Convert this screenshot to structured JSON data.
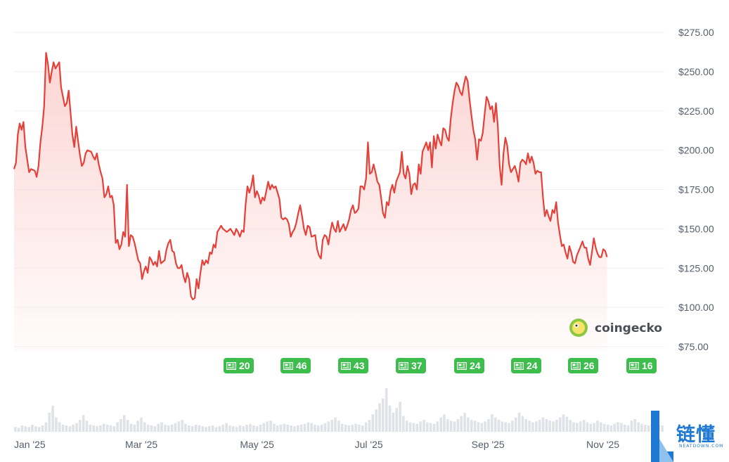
{
  "chart_data": {
    "type": "area",
    "title": "",
    "xlabel": "",
    "ylabel": "",
    "y_axis_position": "right",
    "grid": "horizontal",
    "ylim": [
      67,
      280
    ],
    "ytick_labels": [
      "$275.00",
      "$250.00",
      "$225.00",
      "$200.00",
      "$175.00",
      "$150.00",
      "$125.00",
      "$100.00",
      "$75.00"
    ],
    "ytick_values": [
      275,
      250,
      225,
      200,
      175,
      150,
      125,
      100,
      75
    ],
    "xtick_labels": [
      "Jan '25",
      "Mar '25",
      "May '25",
      "Jul '25",
      "Sep '25",
      "Nov '25"
    ],
    "xtick_days": [
      0,
      59,
      120,
      181,
      243,
      304
    ],
    "x_range_days": [
      0,
      345
    ],
    "line_color": "#e5413b",
    "fill_color": "#fbd3d1",
    "price_points": [
      [
        0,
        188
      ],
      [
        1,
        192
      ],
      [
        2,
        210
      ],
      [
        3,
        217
      ],
      [
        4,
        213
      ],
      [
        5,
        218
      ],
      [
        6,
        202
      ],
      [
        8,
        186
      ],
      [
        9,
        188
      ],
      [
        11,
        187
      ],
      [
        12,
        183
      ],
      [
        13,
        190
      ],
      [
        14,
        205
      ],
      [
        15,
        215
      ],
      [
        16,
        228
      ],
      [
        17,
        262
      ],
      [
        18,
        255
      ],
      [
        19,
        243
      ],
      [
        20,
        250
      ],
      [
        21,
        256
      ],
      [
        22,
        252
      ],
      [
        23,
        254
      ],
      [
        24,
        256
      ],
      [
        25,
        240
      ],
      [
        27,
        228
      ],
      [
        28,
        230
      ],
      [
        29,
        238
      ],
      [
        31,
        210
      ],
      [
        32,
        202
      ],
      [
        33,
        215
      ],
      [
        35,
        197
      ],
      [
        36,
        190
      ],
      [
        37,
        192
      ],
      [
        38,
        198
      ],
      [
        39,
        200
      ],
      [
        41,
        199
      ],
      [
        42,
        196
      ],
      [
        43,
        194
      ],
      [
        44,
        198
      ],
      [
        45,
        191
      ],
      [
        46,
        186
      ],
      [
        47,
        182
      ],
      [
        48,
        170
      ],
      [
        49,
        172
      ],
      [
        50,
        177
      ],
      [
        51,
        170
      ],
      [
        52,
        171
      ],
      [
        53,
        165
      ],
      [
        54,
        141
      ],
      [
        55,
        143
      ],
      [
        56,
        137
      ],
      [
        57,
        140
      ],
      [
        58,
        148
      ],
      [
        59,
        145
      ],
      [
        60,
        178
      ],
      [
        61,
        139
      ],
      [
        62,
        146
      ],
      [
        63,
        145
      ],
      [
        64,
        141
      ],
      [
        66,
        130
      ],
      [
        67,
        128
      ],
      [
        68,
        118
      ],
      [
        69,
        123
      ],
      [
        70,
        126
      ],
      [
        71,
        122
      ],
      [
        72,
        132
      ],
      [
        73,
        130
      ],
      [
        74,
        127
      ],
      [
        75,
        129
      ],
      [
        76,
        126
      ],
      [
        77,
        136
      ],
      [
        78,
        128
      ],
      [
        80,
        130
      ],
      [
        81,
        137
      ],
      [
        82,
        141
      ],
      [
        83,
        143
      ],
      [
        84,
        136
      ],
      [
        85,
        135
      ],
      [
        86,
        128
      ],
      [
        87,
        125
      ],
      [
        88,
        125
      ],
      [
        89,
        127
      ],
      [
        90,
        120
      ],
      [
        91,
        116
      ],
      [
        92,
        122
      ],
      [
        93,
        118
      ],
      [
        94,
        107
      ],
      [
        95,
        105
      ],
      [
        96,
        106
      ],
      [
        97,
        118
      ],
      [
        98,
        112
      ],
      [
        99,
        122
      ],
      [
        100,
        130
      ],
      [
        101,
        127
      ],
      [
        102,
        130
      ],
      [
        103,
        128
      ],
      [
        104,
        135
      ],
      [
        105,
        134
      ],
      [
        106,
        140
      ],
      [
        107,
        138
      ],
      [
        108,
        148
      ],
      [
        109,
        150
      ],
      [
        110,
        152
      ],
      [
        111,
        150
      ],
      [
        113,
        148
      ],
      [
        114,
        149
      ],
      [
        115,
        150
      ],
      [
        116,
        148
      ],
      [
        117,
        146
      ],
      [
        118,
        150
      ],
      [
        119,
        148
      ],
      [
        120,
        145
      ],
      [
        121,
        149
      ],
      [
        122,
        148
      ],
      [
        123,
        165
      ],
      [
        124,
        177
      ],
      [
        125,
        173
      ],
      [
        126,
        177
      ],
      [
        127,
        184
      ],
      [
        128,
        170
      ],
      [
        129,
        174
      ],
      [
        130,
        171
      ],
      [
        131,
        166
      ],
      [
        132,
        170
      ],
      [
        133,
        168
      ],
      [
        135,
        180
      ],
      [
        136,
        175
      ],
      [
        137,
        178
      ],
      [
        138,
        176
      ],
      [
        139,
        177
      ],
      [
        140,
        173
      ],
      [
        141,
        169
      ],
      [
        142,
        157
      ],
      [
        143,
        156
      ],
      [
        144,
        157
      ],
      [
        145,
        156
      ],
      [
        146,
        153
      ],
      [
        147,
        145
      ],
      [
        148,
        148
      ],
      [
        149,
        150
      ],
      [
        150,
        154
      ],
      [
        151,
        160
      ],
      [
        152,
        165
      ],
      [
        153,
        158
      ],
      [
        154,
        150
      ],
      [
        155,
        146
      ],
      [
        156,
        152
      ],
      [
        157,
        151
      ],
      [
        158,
        145
      ],
      [
        160,
        146
      ],
      [
        161,
        137
      ],
      [
        162,
        133
      ],
      [
        163,
        131
      ],
      [
        164,
        143
      ],
      [
        165,
        146
      ],
      [
        166,
        145
      ],
      [
        167,
        140
      ],
      [
        168,
        148
      ],
      [
        169,
        154
      ],
      [
        170,
        150
      ],
      [
        171,
        148
      ],
      [
        172,
        155
      ],
      [
        173,
        148
      ],
      [
        175,
        153
      ],
      [
        176,
        149
      ],
      [
        177,
        152
      ],
      [
        178,
        156
      ],
      [
        179,
        162
      ],
      [
        180,
        165
      ],
      [
        181,
        160
      ],
      [
        182,
        161
      ],
      [
        183,
        163
      ],
      [
        184,
        177
      ],
      [
        185,
        177
      ],
      [
        186,
        175
      ],
      [
        187,
        182
      ],
      [
        188,
        205
      ],
      [
        189,
        185
      ],
      [
        190,
        186
      ],
      [
        191,
        191
      ],
      [
        192,
        186
      ],
      [
        193,
        180
      ],
      [
        194,
        178
      ],
      [
        195,
        170
      ],
      [
        196,
        160
      ],
      [
        197,
        157
      ],
      [
        198,
        167
      ],
      [
        199,
        165
      ],
      [
        200,
        174
      ],
      [
        201,
        178
      ],
      [
        202,
        173
      ],
      [
        203,
        180
      ],
      [
        204,
        183
      ],
      [
        205,
        186
      ],
      [
        206,
        199
      ],
      [
        207,
        185
      ],
      [
        208,
        182
      ],
      [
        209,
        190
      ],
      [
        210,
        185
      ],
      [
        211,
        172
      ],
      [
        212,
        178
      ],
      [
        213,
        179
      ],
      [
        214,
        175
      ],
      [
        215,
        191
      ],
      [
        216,
        185
      ],
      [
        217,
        199
      ],
      [
        218,
        202
      ],
      [
        219,
        205
      ],
      [
        220,
        200
      ],
      [
        221,
        205
      ],
      [
        222,
        189
      ],
      [
        223,
        209
      ],
      [
        224,
        201
      ],
      [
        225,
        210
      ],
      [
        226,
        206
      ],
      [
        227,
        203
      ],
      [
        228,
        214
      ],
      [
        229,
        213
      ],
      [
        230,
        208
      ],
      [
        231,
        206
      ],
      [
        232,
        220
      ],
      [
        233,
        230
      ],
      [
        234,
        238
      ],
      [
        235,
        243
      ],
      [
        236,
        241
      ],
      [
        237,
        237
      ],
      [
        238,
        235
      ],
      [
        239,
        242
      ],
      [
        240,
        247
      ],
      [
        241,
        244
      ],
      [
        242,
        232
      ],
      [
        243,
        222
      ],
      [
        244,
        213
      ],
      [
        245,
        207
      ],
      [
        246,
        194
      ],
      [
        247,
        207
      ],
      [
        248,
        206
      ],
      [
        249,
        211
      ],
      [
        250,
        223
      ],
      [
        251,
        234
      ],
      [
        252,
        231
      ],
      [
        253,
        226
      ],
      [
        254,
        228
      ],
      [
        255,
        218
      ],
      [
        256,
        230
      ],
      [
        257,
        215
      ],
      [
        258,
        190
      ],
      [
        259,
        178
      ],
      [
        260,
        198
      ],
      [
        261,
        208
      ],
      [
        262,
        203
      ],
      [
        263,
        191
      ],
      [
        264,
        186
      ],
      [
        265,
        188
      ],
      [
        266,
        190
      ],
      [
        267,
        186
      ],
      [
        268,
        180
      ],
      [
        269,
        192
      ],
      [
        270,
        194
      ],
      [
        271,
        193
      ],
      [
        272,
        191
      ],
      [
        273,
        198
      ],
      [
        274,
        192
      ],
      [
        275,
        196
      ],
      [
        276,
        192
      ],
      [
        277,
        185
      ],
      [
        278,
        187
      ],
      [
        279,
        186
      ],
      [
        280,
        186
      ],
      [
        281,
        170
      ],
      [
        282,
        158
      ],
      [
        283,
        162
      ],
      [
        284,
        158
      ],
      [
        285,
        155
      ],
      [
        286,
        162
      ],
      [
        287,
        160
      ],
      [
        288,
        167
      ],
      [
        289,
        154
      ],
      [
        290,
        146
      ],
      [
        291,
        139
      ],
      [
        292,
        140
      ],
      [
        293,
        135
      ],
      [
        294,
        131
      ],
      [
        295,
        139
      ],
      [
        296,
        135
      ],
      [
        297,
        129
      ],
      [
        298,
        128
      ],
      [
        299,
        133
      ],
      [
        300,
        136
      ],
      [
        301,
        139
      ],
      [
        302,
        142
      ],
      [
        303,
        138
      ],
      [
        304,
        138
      ],
      [
        305,
        131
      ],
      [
        306,
        127
      ],
      [
        307,
        135
      ],
      [
        308,
        144
      ],
      [
        309,
        138
      ],
      [
        310,
        134
      ],
      [
        311,
        132
      ],
      [
        312,
        132
      ],
      [
        313,
        137
      ],
      [
        314,
        136
      ],
      [
        315,
        132
      ]
    ],
    "volume_bars": [
      6,
      5,
      8,
      7,
      6,
      9,
      7,
      6,
      8,
      12,
      24,
      33,
      18,
      12,
      9,
      8,
      7,
      9,
      11,
      15,
      21,
      14,
      9,
      8,
      7,
      8,
      10,
      9,
      8,
      7,
      12,
      16,
      21,
      15,
      10,
      9,
      14,
      18,
      12,
      9,
      8,
      7,
      10,
      12,
      9,
      8,
      9,
      11,
      13,
      15,
      10,
      8,
      7,
      9,
      8,
      7,
      6,
      7,
      8,
      6,
      7,
      9,
      11,
      8,
      7,
      6,
      8,
      7,
      9,
      10,
      8,
      7,
      9,
      11,
      13,
      14,
      10,
      8,
      9,
      10,
      9,
      8,
      7,
      8,
      9,
      10,
      12,
      11,
      9,
      8,
      9,
      11,
      13,
      15,
      18,
      14,
      10,
      9,
      8,
      9,
      10,
      9,
      8,
      12,
      15,
      22,
      28,
      36,
      42,
      55,
      33,
      24,
      30,
      38,
      20,
      14,
      12,
      11,
      10,
      13,
      15,
      12,
      11,
      10,
      13,
      18,
      22,
      16,
      14,
      13,
      16,
      20,
      24,
      18,
      15,
      14,
      12,
      11,
      13,
      16,
      22,
      18,
      15,
      13,
      12,
      11,
      14,
      18,
      24,
      20,
      16,
      14,
      12,
      13,
      15,
      18,
      16,
      14,
      13,
      15,
      18,
      22,
      19,
      15,
      12,
      11,
      13,
      15,
      12,
      10,
      11,
      14,
      12,
      10,
      9,
      8,
      10,
      12,
      11,
      9,
      8,
      14,
      16,
      12,
      10,
      9,
      8,
      10,
      11,
      9,
      8
    ],
    "volume_color": "#dfe3e8"
  },
  "news_badges": [
    "20",
    "46",
    "43",
    "37",
    "24",
    "24",
    "26",
    "16"
  ],
  "watermark": {
    "text": "coingecko"
  },
  "corner_logo": {
    "cn": "链懂",
    "en": "NEATDOWN.COM"
  }
}
